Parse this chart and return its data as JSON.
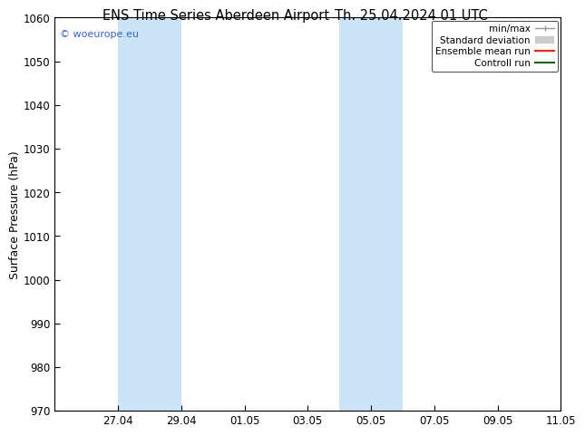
{
  "title_left": "ENS Time Series Aberdeen Airport",
  "title_right": "Th. 25.04.2024 01 UTC",
  "ylabel": "Surface Pressure (hPa)",
  "ylim": [
    970,
    1060
  ],
  "yticks": [
    970,
    980,
    990,
    1000,
    1010,
    1020,
    1030,
    1040,
    1050,
    1060
  ],
  "xlim": [
    0,
    16
  ],
  "xtick_labels": [
    "27.04",
    "29.04",
    "01.05",
    "03.05",
    "05.05",
    "07.05",
    "09.05",
    "11.05"
  ],
  "xtick_positions": [
    2,
    4,
    6,
    8,
    10,
    12,
    14,
    16
  ],
  "shaded_bands": [
    {
      "x_start": 2,
      "x_end": 4,
      "color": "#cce4f7"
    },
    {
      "x_start": 9,
      "x_end": 11,
      "color": "#cce4f7"
    }
  ],
  "watermark_text": "© woeurope.eu",
  "watermark_color": "#3366cc",
  "bg_color": "#ffffff",
  "plot_bg_color": "#ffffff",
  "title_fontsize": 10.5,
  "axis_label_fontsize": 9,
  "tick_fontsize": 8.5,
  "watermark_fontsize": 8,
  "legend_fontsize": 7.5,
  "legend_items": [
    {
      "label": "min/max",
      "color": "#999999"
    },
    {
      "label": "Standard deviation",
      "color": "#cccccc"
    },
    {
      "label": "Ensemble mean run",
      "color": "#ff2200"
    },
    {
      "label": "Controll run",
      "color": "#006600"
    }
  ]
}
